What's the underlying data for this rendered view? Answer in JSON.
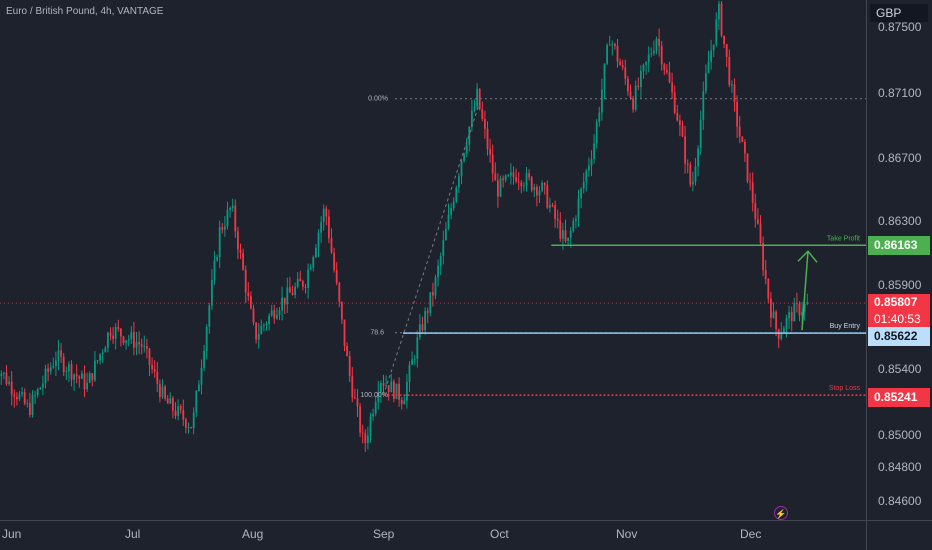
{
  "header": {
    "title": "Euro / British Pound, 4h, VANTAGE"
  },
  "price_axis": {
    "currency": "GBP",
    "ticks": [
      "0.87500",
      "0.87100",
      "0.86700",
      "0.86300",
      "0.85900",
      "0.85400",
      "0.85000",
      "0.84800",
      "0.84600"
    ]
  },
  "time_axis": {
    "labels": [
      "Jun",
      "Jul",
      "Aug",
      "Sep",
      "Oct",
      "Nov",
      "Dec"
    ]
  },
  "badges": {
    "take_profit": "0.86163",
    "last_price": "0.85807",
    "countdown": "01:40:53",
    "buy_entry": "0.85622",
    "stop_loss": "0.85241"
  },
  "annotations": {
    "take_profit": "Take Profit",
    "buy_entry": "Buy Entry",
    "stop_loss": "Stop Loss",
    "fib_0": "0.00%",
    "fib_786": "78.6",
    "fib_100": "100.00%"
  },
  "colors": {
    "up": "#089981",
    "down": "#f23645",
    "background": "#1e222d",
    "take_profit": "#4caf50",
    "stop_loss": "#f23645",
    "entry": "#90caf9"
  },
  "chart_data": {
    "type": "candlestick",
    "title": "Euro / British Pound, 4h, VANTAGE",
    "unit": "GBP",
    "ylim": [
      0.8445,
      0.8764
    ],
    "x_labels": [
      "Jun",
      "Jul",
      "Aug",
      "Sep",
      "Oct",
      "Nov",
      "Dec"
    ],
    "price_path": [
      {
        "date": "2024-05-27",
        "price": 0.8545
      },
      {
        "date": "2024-06-05",
        "price": 0.8515
      },
      {
        "date": "2024-06-12",
        "price": 0.8548
      },
      {
        "date": "2024-06-20",
        "price": 0.853
      },
      {
        "date": "2024-06-26",
        "price": 0.8565
      },
      {
        "date": "2024-07-04",
        "price": 0.8555
      },
      {
        "date": "2024-07-10",
        "price": 0.852
      },
      {
        "date": "2024-07-17",
        "price": 0.8505
      },
      {
        "date": "2024-07-24",
        "price": 0.8625
      },
      {
        "date": "2024-07-27",
        "price": 0.864
      },
      {
        "date": "2024-08-02",
        "price": 0.856
      },
      {
        "date": "2024-08-08",
        "price": 0.858
      },
      {
        "date": "2024-08-15",
        "price": 0.8595
      },
      {
        "date": "2024-08-20",
        "price": 0.864
      },
      {
        "date": "2024-08-26",
        "price": 0.854
      },
      {
        "date": "2024-08-30",
        "price": 0.8492
      },
      {
        "date": "2024-09-03",
        "price": 0.8535
      },
      {
        "date": "2024-09-09",
        "price": 0.8522
      },
      {
        "date": "2024-09-13",
        "price": 0.856
      },
      {
        "date": "2024-09-17",
        "price": 0.859
      },
      {
        "date": "2024-09-24",
        "price": 0.867
      },
      {
        "date": "2024-09-28",
        "price": 0.8708
      },
      {
        "date": "2024-10-03",
        "price": 0.865
      },
      {
        "date": "2024-10-08",
        "price": 0.866
      },
      {
        "date": "2024-10-15",
        "price": 0.865
      },
      {
        "date": "2024-10-21",
        "price": 0.8615
      },
      {
        "date": "2024-10-28",
        "price": 0.868
      },
      {
        "date": "2024-11-01",
        "price": 0.8745
      },
      {
        "date": "2024-11-07",
        "price": 0.8705
      },
      {
        "date": "2024-11-13",
        "price": 0.8745
      },
      {
        "date": "2024-11-18",
        "price": 0.87
      },
      {
        "date": "2024-11-22",
        "price": 0.865
      },
      {
        "date": "2024-11-26",
        "price": 0.8725
      },
      {
        "date": "2024-11-29",
        "price": 0.876
      },
      {
        "date": "2024-12-03",
        "price": 0.87
      },
      {
        "date": "2024-12-08",
        "price": 0.864
      },
      {
        "date": "2024-12-12",
        "price": 0.858
      },
      {
        "date": "2024-12-14",
        "price": 0.8562
      },
      {
        "date": "2024-12-18",
        "price": 0.8575
      },
      {
        "date": "2024-12-22",
        "price": 0.858
      }
    ],
    "levels": [
      {
        "name": "Take Profit",
        "price": 0.86163,
        "from": "2024-10-17"
      },
      {
        "name": "Last Price",
        "price": 0.85807
      },
      {
        "name": "Buy Entry",
        "price": 0.85622,
        "from": "2024-09-09"
      },
      {
        "name": "Stop Loss",
        "price": 0.85241,
        "from": "2024-09-04"
      }
    ],
    "fibonacci": [
      {
        "level": "0.00%",
        "price": 0.87065
      },
      {
        "level": "78.6",
        "price": 0.85625
      },
      {
        "level": "100.00%",
        "price": 0.85241
      }
    ],
    "grid": false
  }
}
